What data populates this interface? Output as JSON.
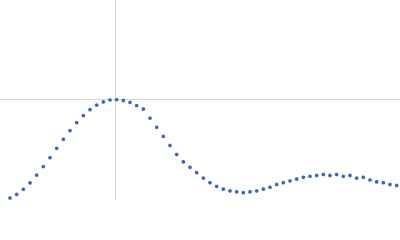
{
  "chart_data": {
    "type": "scatter",
    "x": [
      0.15,
      0.25,
      0.35,
      0.45,
      0.55,
      0.65,
      0.75,
      0.85,
      0.95,
      1.05,
      1.15,
      1.25,
      1.35,
      1.45,
      1.55,
      1.65,
      1.75,
      1.85,
      1.95,
      2.05,
      2.15,
      2.25,
      2.35,
      2.45,
      2.55,
      2.65,
      2.75,
      2.85,
      2.95,
      3.05,
      3.15,
      3.25,
      3.35,
      3.45,
      3.55,
      3.65,
      3.75,
      3.85,
      3.95,
      4.05,
      4.15,
      4.25,
      4.35,
      4.45,
      4.55,
      4.65,
      4.75,
      4.85,
      4.95,
      5.05,
      5.15,
      5.25,
      5.35,
      5.45,
      5.55,
      5.65,
      5.75,
      5.85,
      5.95
    ],
    "values": [
      0.022,
      0.061,
      0.118,
      0.189,
      0.273,
      0.367,
      0.466,
      0.568,
      0.668,
      0.763,
      0.85,
      0.928,
      0.993,
      1.043,
      1.079,
      1.1,
      1.104,
      1.095,
      1.074,
      1.038,
      1.0,
      0.9,
      0.8,
      0.7,
      0.6,
      0.5,
      0.42,
      0.36,
      0.3,
      0.24,
      0.19,
      0.15,
      0.12,
      0.1,
      0.09,
      0.08,
      0.09,
      0.1,
      0.12,
      0.14,
      0.17,
      0.19,
      0.21,
      0.23,
      0.25,
      0.26,
      0.27,
      0.28,
      0.27,
      0.28,
      0.26,
      0.27,
      0.24,
      0.25,
      0.22,
      0.2,
      0.19,
      0.17,
      0.16
    ],
    "color": "#3b65b5",
    "xlim": [
      0,
      6
    ],
    "ylim": [
      0,
      2.2
    ],
    "xticks": [
      1.732
    ],
    "yticks": [
      1.104
    ],
    "grid": true
  }
}
